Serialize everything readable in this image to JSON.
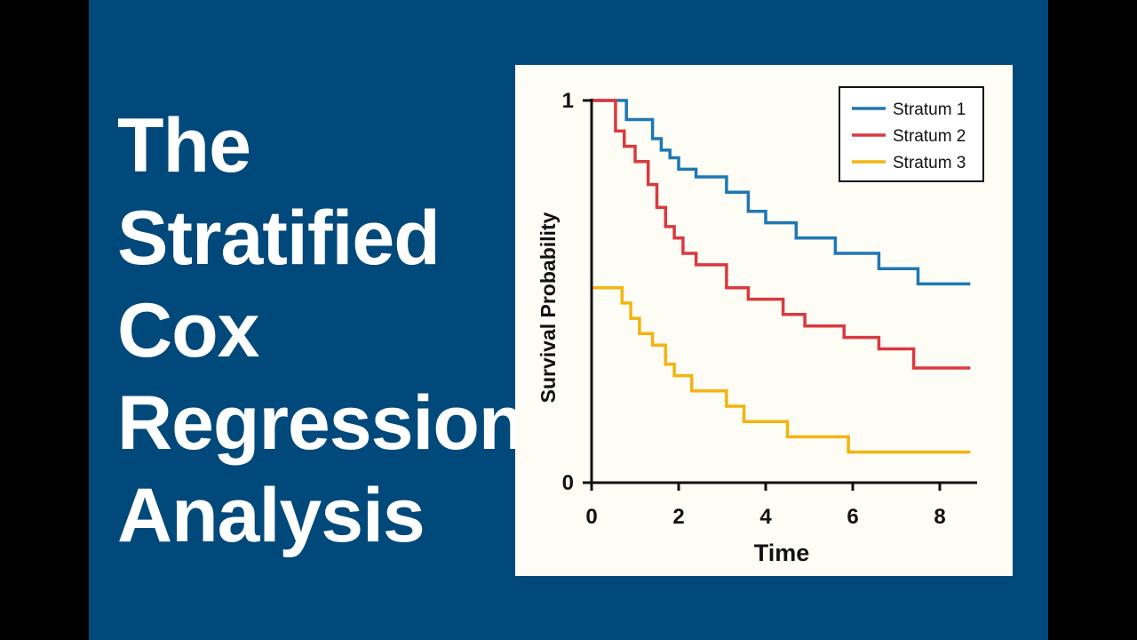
{
  "title_lines": [
    "The",
    "Stratified",
    "Cox",
    "Regression",
    "Analysis"
  ],
  "colors": {
    "background": "#00497a",
    "panel": "#fdfcf5",
    "title_text": "#ffffff",
    "axis": "#111111"
  },
  "chart_data": {
    "type": "line",
    "step": true,
    "xlabel": "Time",
    "ylabel": "Survival Probability",
    "xlim": [
      0,
      8.7
    ],
    "ylim": [
      0,
      1
    ],
    "xticks": [
      "0",
      "2",
      "4",
      "6",
      "8"
    ],
    "yticks": [
      "0",
      "1"
    ],
    "grid": false,
    "legend": "top-right",
    "series": [
      {
        "name": "Stratum 1",
        "color": "#1f77b4",
        "x": [
          0,
          0.8,
          0.8,
          1.4,
          1.6,
          1.8,
          2.0,
          2.4,
          3.1,
          3.6,
          4.0,
          4.7,
          5.6,
          6.6,
          7.5,
          8.7
        ],
        "y": [
          1.0,
          1.0,
          0.95,
          0.9,
          0.87,
          0.85,
          0.82,
          0.8,
          0.76,
          0.71,
          0.68,
          0.64,
          0.6,
          0.56,
          0.52,
          0.52
        ]
      },
      {
        "name": "Stratum 2",
        "color": "#d9393f",
        "x": [
          0,
          0.55,
          0.75,
          1.0,
          1.3,
          1.5,
          1.7,
          1.9,
          2.1,
          2.4,
          3.1,
          3.6,
          4.4,
          4.9,
          5.8,
          6.6,
          7.4,
          8.7
        ],
        "y": [
          1.0,
          0.92,
          0.88,
          0.84,
          0.78,
          0.72,
          0.67,
          0.64,
          0.6,
          0.57,
          0.51,
          0.48,
          0.44,
          0.41,
          0.38,
          0.35,
          0.3,
          0.3
        ]
      },
      {
        "name": "Stratum 3",
        "color": "#f2b40f",
        "x": [
          0,
          0.7,
          0.9,
          1.1,
          1.4,
          1.7,
          1.9,
          2.3,
          3.1,
          3.5,
          4.5,
          5.9,
          8.7
        ],
        "y": [
          0.51,
          0.47,
          0.43,
          0.39,
          0.36,
          0.31,
          0.28,
          0.24,
          0.2,
          0.16,
          0.12,
          0.08,
          0.08
        ]
      }
    ]
  }
}
